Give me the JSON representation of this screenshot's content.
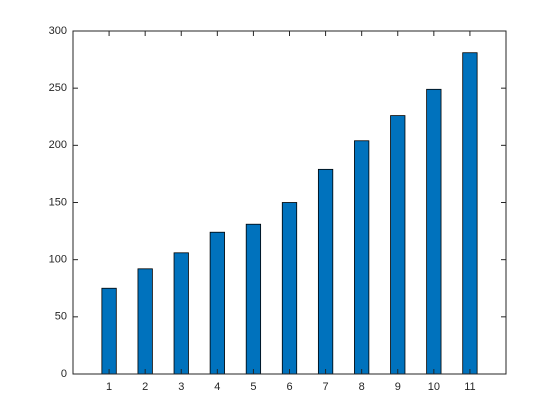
{
  "chart_data": {
    "type": "bar",
    "x": [
      1,
      2,
      3,
      4,
      5,
      6,
      7,
      8,
      9,
      10,
      11
    ],
    "values": [
      75,
      92,
      106,
      124,
      131,
      150,
      179,
      204,
      226,
      249,
      281
    ],
    "color": "#0072bd",
    "xlim": [
      0,
      12
    ],
    "xticks": [
      1,
      2,
      3,
      4,
      5,
      6,
      7,
      8,
      9,
      10,
      11
    ],
    "ylim": [
      0,
      300
    ],
    "yticks": [
      0,
      50,
      100,
      150,
      200,
      250,
      300
    ],
    "grid": false
  }
}
